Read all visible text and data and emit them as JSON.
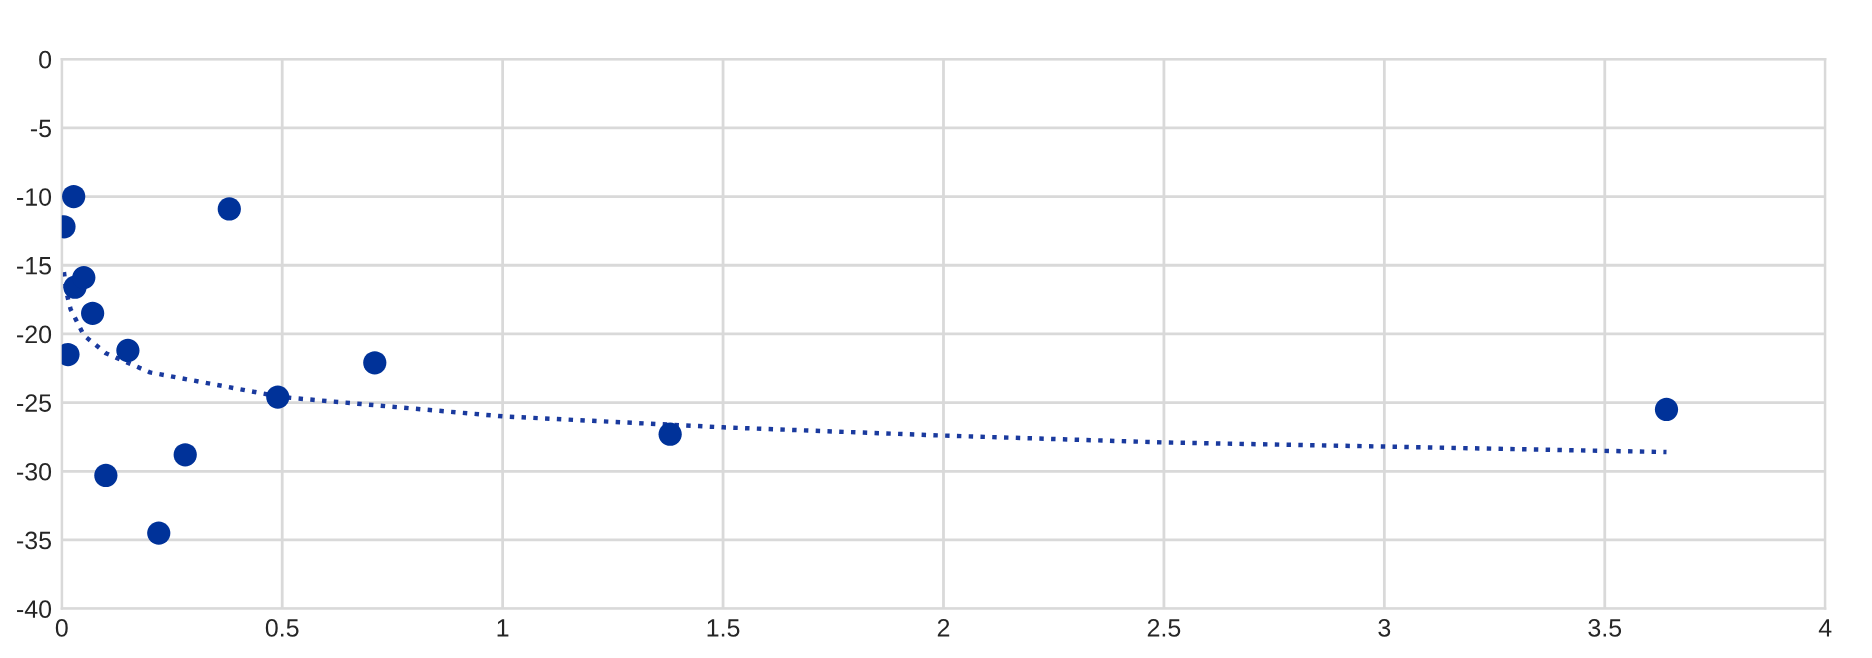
{
  "chart_data": {
    "type": "scatter",
    "xlim": [
      0,
      4
    ],
    "ylim": [
      -40,
      0
    ],
    "xticks": [
      0,
      0.5,
      1,
      1.5,
      2,
      2.5,
      3,
      3.5,
      4
    ],
    "yticks": [
      -40,
      -35,
      -30,
      -25,
      -20,
      -15,
      -10,
      -5,
      0
    ],
    "grid": true,
    "legend": false,
    "series": [
      {
        "color": "#003299",
        "marker": "circle",
        "x": [
          0.005,
          0.027,
          0.014,
          0.03,
          0.05,
          0.07,
          0.1,
          0.15,
          0.22,
          0.28,
          0.38,
          0.49,
          0.71,
          1.38,
          3.64
        ],
        "values": [
          -12.2,
          -10.0,
          -21.5,
          -16.6,
          -15.9,
          -18.5,
          -30.3,
          -21.2,
          -34.5,
          -28.8,
          -10.9,
          -24.6,
          -22.1,
          -27.3,
          -25.5
        ]
      },
      {
        "type": "line",
        "color": "#1a3a9e",
        "line_style": "dotted",
        "x": [
          0.005,
          0.01,
          0.02,
          0.05,
          0.1,
          0.2,
          0.5,
          1,
          1.5,
          2,
          2.5,
          3,
          3.64
        ],
        "values": [
          -15.5,
          -16.9,
          -18.2,
          -20.1,
          -21.4,
          -22.8,
          -24.6,
          -26.0,
          -26.8,
          -27.4,
          -27.9,
          -28.2,
          -28.6
        ]
      }
    ]
  }
}
